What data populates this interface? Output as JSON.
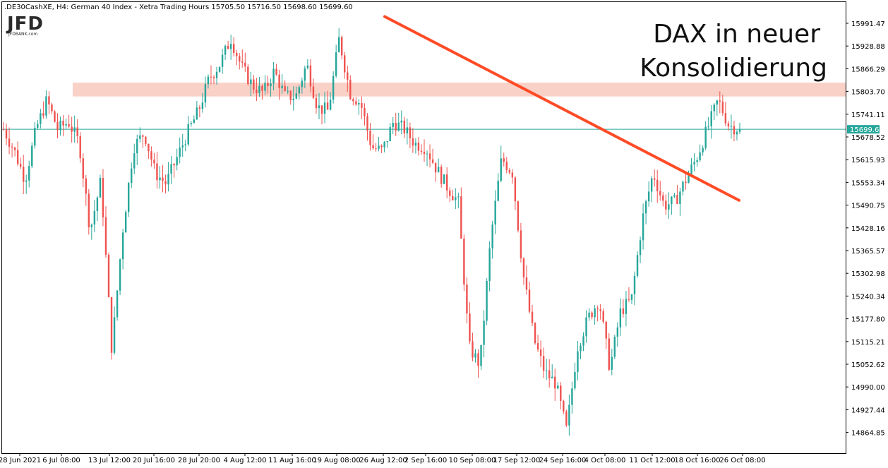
{
  "header": {
    "symbol_info": ".DE30CashXE, H4:  German 40 Index  - Xetra Trading Hours",
    "ohlc": "15705.50 15716.50 15698.60 15699.60"
  },
  "logo": {
    "text": "JFD",
    "subtext": "JFDBANK.com"
  },
  "annotation": {
    "line1": "DAX in neuer",
    "line2": "Konsolidierung"
  },
  "price_label": "15699.60",
  "colors": {
    "bull": "#26a69a",
    "bear": "#ef5350",
    "trendline": "#ff4b26",
    "zone": "#f8c9bd",
    "current_line": "#26a69a",
    "axis": "#000000"
  },
  "chart_data": {
    "type": "candlestick",
    "y_ticks": [
      "15991.47",
      "15928.88",
      "15866.29",
      "15803.70",
      "15741.11",
      "15678.52",
      "15615.93",
      "15553.34",
      "15490.75",
      "15428.16",
      "15365.57",
      "15302.98",
      "15240.34",
      "15177.80",
      "15115.21",
      "15052.62",
      "14990.00",
      "14927.44",
      "14864.85"
    ],
    "ylim": [
      14815,
      16075
    ],
    "x_labels": [
      "28 Jun 2021",
      "6 Jul 08:00",
      "13 Jul 12:00",
      "20 Jul 16:00",
      "28 Jul 20:00",
      "4 Aug 12:00",
      "11 Aug 16:00",
      "19 Aug 08:00",
      "26 Aug 12:00",
      "2 Sep 16:00",
      "10 Sep 08:00",
      "17 Sep 12:00",
      "24 Sep 16:00",
      "4 Oct 08:00",
      "11 Oct 12:00",
      "18 Oct 16:00",
      "26 Oct 08:00"
    ],
    "current_price": 15699.6,
    "resistance_zone": [
      15790,
      15828
    ],
    "trendline": {
      "from": [
        "26 Aug 12:00",
        16010
      ],
      "to": [
        "26 Oct 08:00",
        15504
      ]
    },
    "series_anchor_closes": [
      15700,
      15640,
      15560,
      15700,
      15780,
      15700,
      15720,
      15660,
      15420,
      15560,
      15090,
      15420,
      15650,
      15690,
      15580,
      15550,
      15620,
      15690,
      15750,
      15840,
      15880,
      15950,
      15870,
      15820,
      15800,
      15860,
      15790,
      15790,
      15880,
      15760,
      15750,
      15950,
      15800,
      15770,
      15650,
      15640,
      15720,
      15700,
      15660,
      15650,
      15590,
      15540,
      15500,
      15100,
      15050,
      15400,
      15620,
      15580,
      15300,
      15120,
      15030,
      15000,
      14870,
      15100,
      15180,
      15230,
      15040,
      15200,
      15230,
      15450,
      15580,
      15490,
      15500,
      15560,
      15620,
      15700,
      15780,
      15710,
      15700
    ]
  }
}
